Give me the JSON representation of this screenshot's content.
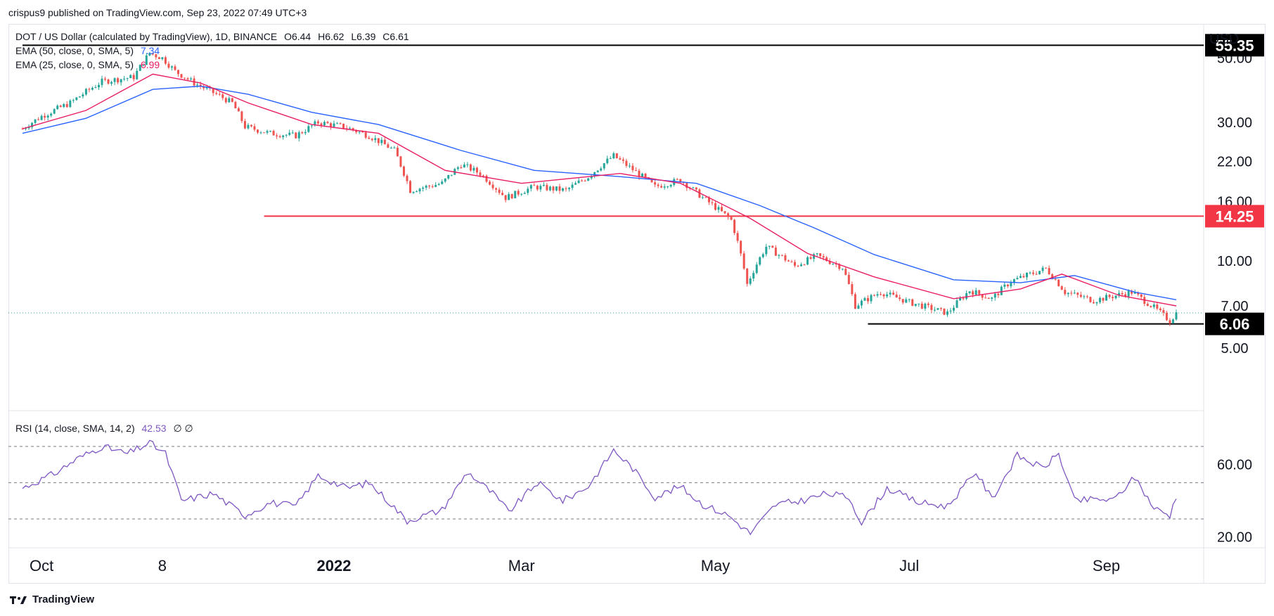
{
  "header": {
    "published": "crispus9 published on TradingView.com, Sep 23, 2022 07:49 UTC+3"
  },
  "symbol": {
    "name": "DOT / US Dollar (calculated by TradingView), 1D, BINANCE",
    "o": "O6.44",
    "h": "H6.62",
    "l": "L6.39",
    "c": "C6.61"
  },
  "indicators": [
    {
      "label": "EMA (50, close, 0, SMA, 5)",
      "value": "7.34",
      "color": "#2962ff"
    },
    {
      "label": "EMA (25, close, 0, SMA, 5)",
      "value": "6.99",
      "color": "#e91e63"
    }
  ],
  "rsi": {
    "label": "RSI (14, close, SMA, 14, 2)",
    "value": "42.53",
    "extra": "∅ ∅",
    "color": "#7e57c2"
  },
  "axis": {
    "currency": "USD",
    "price_ticks": [
      "50.00",
      "30.00",
      "22.00",
      "16.00",
      "10.00",
      "7.00",
      "5.00"
    ],
    "rsi_ticks": [
      "60.00",
      "20.00"
    ],
    "time_labels": [
      "Oct",
      "8",
      "2022",
      "Mar",
      "May",
      "Jul",
      "Sep"
    ]
  },
  "levels": [
    {
      "label": "55.35",
      "color": "#000000"
    },
    {
      "label": "14.25",
      "color": "#f23645"
    },
    {
      "label": "6.06",
      "color": "#000000"
    }
  ],
  "colors": {
    "up": "#26a69a",
    "down": "#ef5350",
    "ema50": "#2962ff",
    "ema25": "#e91e63",
    "rsi": "#7e57c2"
  },
  "footer": {
    "brand": "TradingView",
    "logo_icon": "tradingview-logo-icon"
  },
  "chart_data": {
    "type": "candlestick",
    "title": "DOT / US Dollar (calculated by TradingView), 1D, BINANCE",
    "price_scale": "log",
    "ylim": [
      4.6,
      62
    ],
    "rsi_ylim": [
      16,
      82
    ],
    "rsi_levels": [
      70,
      50,
      30
    ],
    "x_range": [
      "2021-09-25",
      "2022-09-25"
    ],
    "x_ticks": [
      {
        "label": "Oct",
        "date": "2021-10-01"
      },
      {
        "label": "8",
        "date": "2021-11-08"
      },
      {
        "label": "2022",
        "date": "2022-01-01"
      },
      {
        "label": "Mar",
        "date": "2022-03-01"
      },
      {
        "label": "May",
        "date": "2022-05-01"
      },
      {
        "label": "Jul",
        "date": "2022-07-01"
      },
      {
        "label": "Sep",
        "date": "2022-09-01"
      }
    ],
    "close_keypoints": [
      [
        "2021-09-25",
        28.5
      ],
      [
        "2021-10-01",
        31.5
      ],
      [
        "2021-10-10",
        35
      ],
      [
        "2021-10-20",
        41.5
      ],
      [
        "2021-10-30",
        43
      ],
      [
        "2021-11-04",
        52
      ],
      [
        "2021-11-08",
        50
      ],
      [
        "2021-11-12",
        45
      ],
      [
        "2021-11-18",
        41
      ],
      [
        "2021-11-24",
        38
      ],
      [
        "2021-11-30",
        35
      ],
      [
        "2021-12-04",
        29
      ],
      [
        "2021-12-12",
        27.5
      ],
      [
        "2021-12-20",
        27
      ],
      [
        "2021-12-27",
        30
      ],
      [
        "2022-01-04",
        29
      ],
      [
        "2022-01-12",
        27
      ],
      [
        "2022-01-20",
        24
      ],
      [
        "2022-01-25",
        17.5
      ],
      [
        "2022-02-04",
        18.5
      ],
      [
        "2022-02-10",
        21.5
      ],
      [
        "2022-02-16",
        20
      ],
      [
        "2022-02-24",
        16.5
      ],
      [
        "2022-03-05",
        18
      ],
      [
        "2022-03-15",
        17.5
      ],
      [
        "2022-03-22",
        19.5
      ],
      [
        "2022-03-30",
        23
      ],
      [
        "2022-04-04",
        21
      ],
      [
        "2022-04-12",
        18
      ],
      [
        "2022-04-20",
        19
      ],
      [
        "2022-04-27",
        16.5
      ],
      [
        "2022-05-06",
        13.8
      ],
      [
        "2022-05-11",
        8.3
      ],
      [
        "2022-05-17",
        11.2
      ],
      [
        "2022-05-26",
        9.6
      ],
      [
        "2022-06-02",
        10.4
      ],
      [
        "2022-06-10",
        9.5
      ],
      [
        "2022-06-14",
        7.0
      ],
      [
        "2022-06-22",
        7.8
      ],
      [
        "2022-07-01",
        7.2
      ],
      [
        "2022-07-13",
        6.6
      ],
      [
        "2022-07-20",
        7.9
      ],
      [
        "2022-07-27",
        7.4
      ],
      [
        "2022-08-02",
        8.5
      ],
      [
        "2022-08-13",
        9.4
      ],
      [
        "2022-08-19",
        7.8
      ],
      [
        "2022-08-28",
        7.3
      ],
      [
        "2022-09-09",
        7.8
      ],
      [
        "2022-09-16",
        6.9
      ],
      [
        "2022-09-21",
        6.2
      ],
      [
        "2022-09-23",
        6.61
      ]
    ],
    "rsi_keypoints": [
      [
        "2021-09-25",
        47
      ],
      [
        "2021-10-05",
        55
      ],
      [
        "2021-10-12",
        63
      ],
      [
        "2021-10-20",
        70
      ],
      [
        "2021-10-28",
        66
      ],
      [
        "2021-11-04",
        72
      ],
      [
        "2021-11-09",
        66
      ],
      [
        "2021-11-14",
        40
      ],
      [
        "2021-11-24",
        44
      ],
      [
        "2021-12-04",
        32
      ],
      [
        "2021-12-12",
        39
      ],
      [
        "2021-12-20",
        37
      ],
      [
        "2021-12-27",
        54
      ],
      [
        "2022-01-05",
        47
      ],
      [
        "2022-01-12",
        50
      ],
      [
        "2022-01-18",
        40
      ],
      [
        "2022-01-24",
        29
      ],
      [
        "2022-02-04",
        35
      ],
      [
        "2022-02-12",
        56
      ],
      [
        "2022-02-20",
        44
      ],
      [
        "2022-02-25",
        34
      ],
      [
        "2022-03-06",
        50
      ],
      [
        "2022-03-14",
        40
      ],
      [
        "2022-03-22",
        48
      ],
      [
        "2022-03-30",
        68
      ],
      [
        "2022-04-05",
        58
      ],
      [
        "2022-04-12",
        42
      ],
      [
        "2022-04-20",
        48
      ],
      [
        "2022-04-27",
        38
      ],
      [
        "2022-05-05",
        32
      ],
      [
        "2022-05-12",
        22
      ],
      [
        "2022-05-20",
        38
      ],
      [
        "2022-05-28",
        40
      ],
      [
        "2022-06-05",
        44
      ],
      [
        "2022-06-12",
        42
      ],
      [
        "2022-06-16",
        28
      ],
      [
        "2022-06-24",
        47
      ],
      [
        "2022-07-04",
        39
      ],
      [
        "2022-07-13",
        37
      ],
      [
        "2022-07-22",
        56
      ],
      [
        "2022-07-27",
        41
      ],
      [
        "2022-08-04",
        65
      ],
      [
        "2022-08-12",
        58
      ],
      [
        "2022-08-17",
        66
      ],
      [
        "2022-08-22",
        40
      ],
      [
        "2022-08-30",
        41
      ],
      [
        "2022-09-03",
        40
      ],
      [
        "2022-09-10",
        53
      ],
      [
        "2022-09-16",
        36
      ],
      [
        "2022-09-21",
        32
      ],
      [
        "2022-09-23",
        42.53
      ]
    ],
    "ema50_keypoints": [
      [
        "2021-09-25",
        27.5
      ],
      [
        "2021-10-15",
        31
      ],
      [
        "2021-11-05",
        39
      ],
      [
        "2021-11-20",
        40
      ],
      [
        "2021-12-05",
        37.5
      ],
      [
        "2021-12-25",
        32.5
      ],
      [
        "2022-01-15",
        29.5
      ],
      [
        "2022-02-10",
        24
      ],
      [
        "2022-03-05",
        20.5
      ],
      [
        "2022-04-01",
        19.5
      ],
      [
        "2022-04-25",
        18.5
      ],
      [
        "2022-05-15",
        15.5
      ],
      [
        "2022-06-01",
        13
      ],
      [
        "2022-06-20",
        10.5
      ],
      [
        "2022-07-15",
        8.6
      ],
      [
        "2022-08-05",
        8.4
      ],
      [
        "2022-08-22",
        8.9
      ],
      [
        "2022-09-10",
        7.8
      ],
      [
        "2022-09-23",
        7.34
      ]
    ],
    "ema25_keypoints": [
      [
        "2021-09-25",
        28.5
      ],
      [
        "2021-10-15",
        33
      ],
      [
        "2021-11-05",
        44
      ],
      [
        "2021-11-20",
        41
      ],
      [
        "2021-12-05",
        35
      ],
      [
        "2021-12-25",
        29.5
      ],
      [
        "2022-01-15",
        27.5
      ],
      [
        "2022-02-05",
        20.5
      ],
      [
        "2022-03-01",
        18.5
      ],
      [
        "2022-04-01",
        20
      ],
      [
        "2022-04-20",
        18.5
      ],
      [
        "2022-05-12",
        14
      ],
      [
        "2022-05-30",
        10.6
      ],
      [
        "2022-06-20",
        8.8
      ],
      [
        "2022-07-15",
        7.4
      ],
      [
        "2022-08-05",
        8.0
      ],
      [
        "2022-08-18",
        9.0
      ],
      [
        "2022-09-05",
        7.6
      ],
      [
        "2022-09-23",
        6.99
      ]
    ],
    "horizontal_levels": [
      {
        "value": 55.35,
        "from": "2021-09-25",
        "to": "2022-09-25",
        "color": "#000000"
      },
      {
        "value": 14.25,
        "from": "2021-12-10",
        "to": "2022-09-25",
        "color": "#f23645"
      },
      {
        "value": 6.06,
        "from": "2022-06-18",
        "to": "2022-09-25",
        "color": "#000000"
      }
    ],
    "last_price": 6.61
  }
}
